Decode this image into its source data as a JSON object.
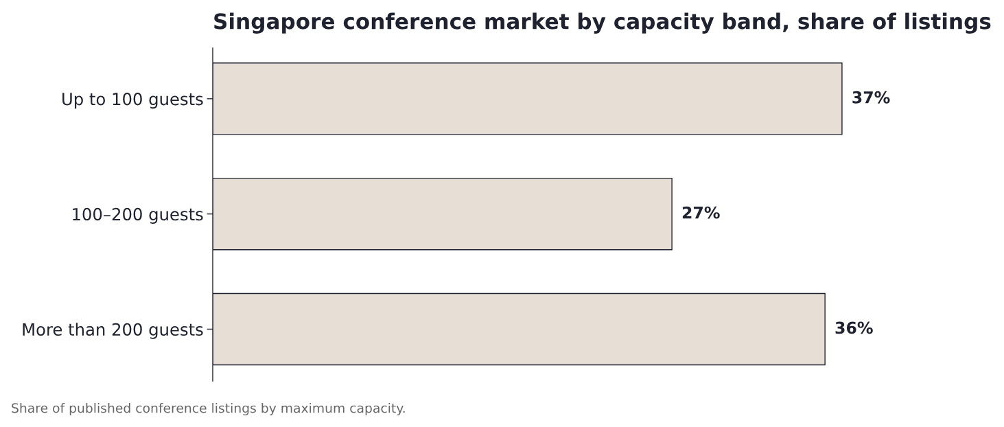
{
  "chart_data": {
    "type": "bar",
    "orientation": "horizontal",
    "title": "Singapore conference market by capacity band, share of listings",
    "categories": [
      "Up to 100 guests",
      "100–200 guests",
      "More than 200 guests"
    ],
    "values": [
      37,
      27,
      36
    ],
    "value_labels": [
      "37%",
      "27%",
      "36%"
    ],
    "color": "#e7ded5",
    "tick_labels": "y",
    "annotations": [
      "Share of published conference listings by maximum capacity."
    ]
  }
}
